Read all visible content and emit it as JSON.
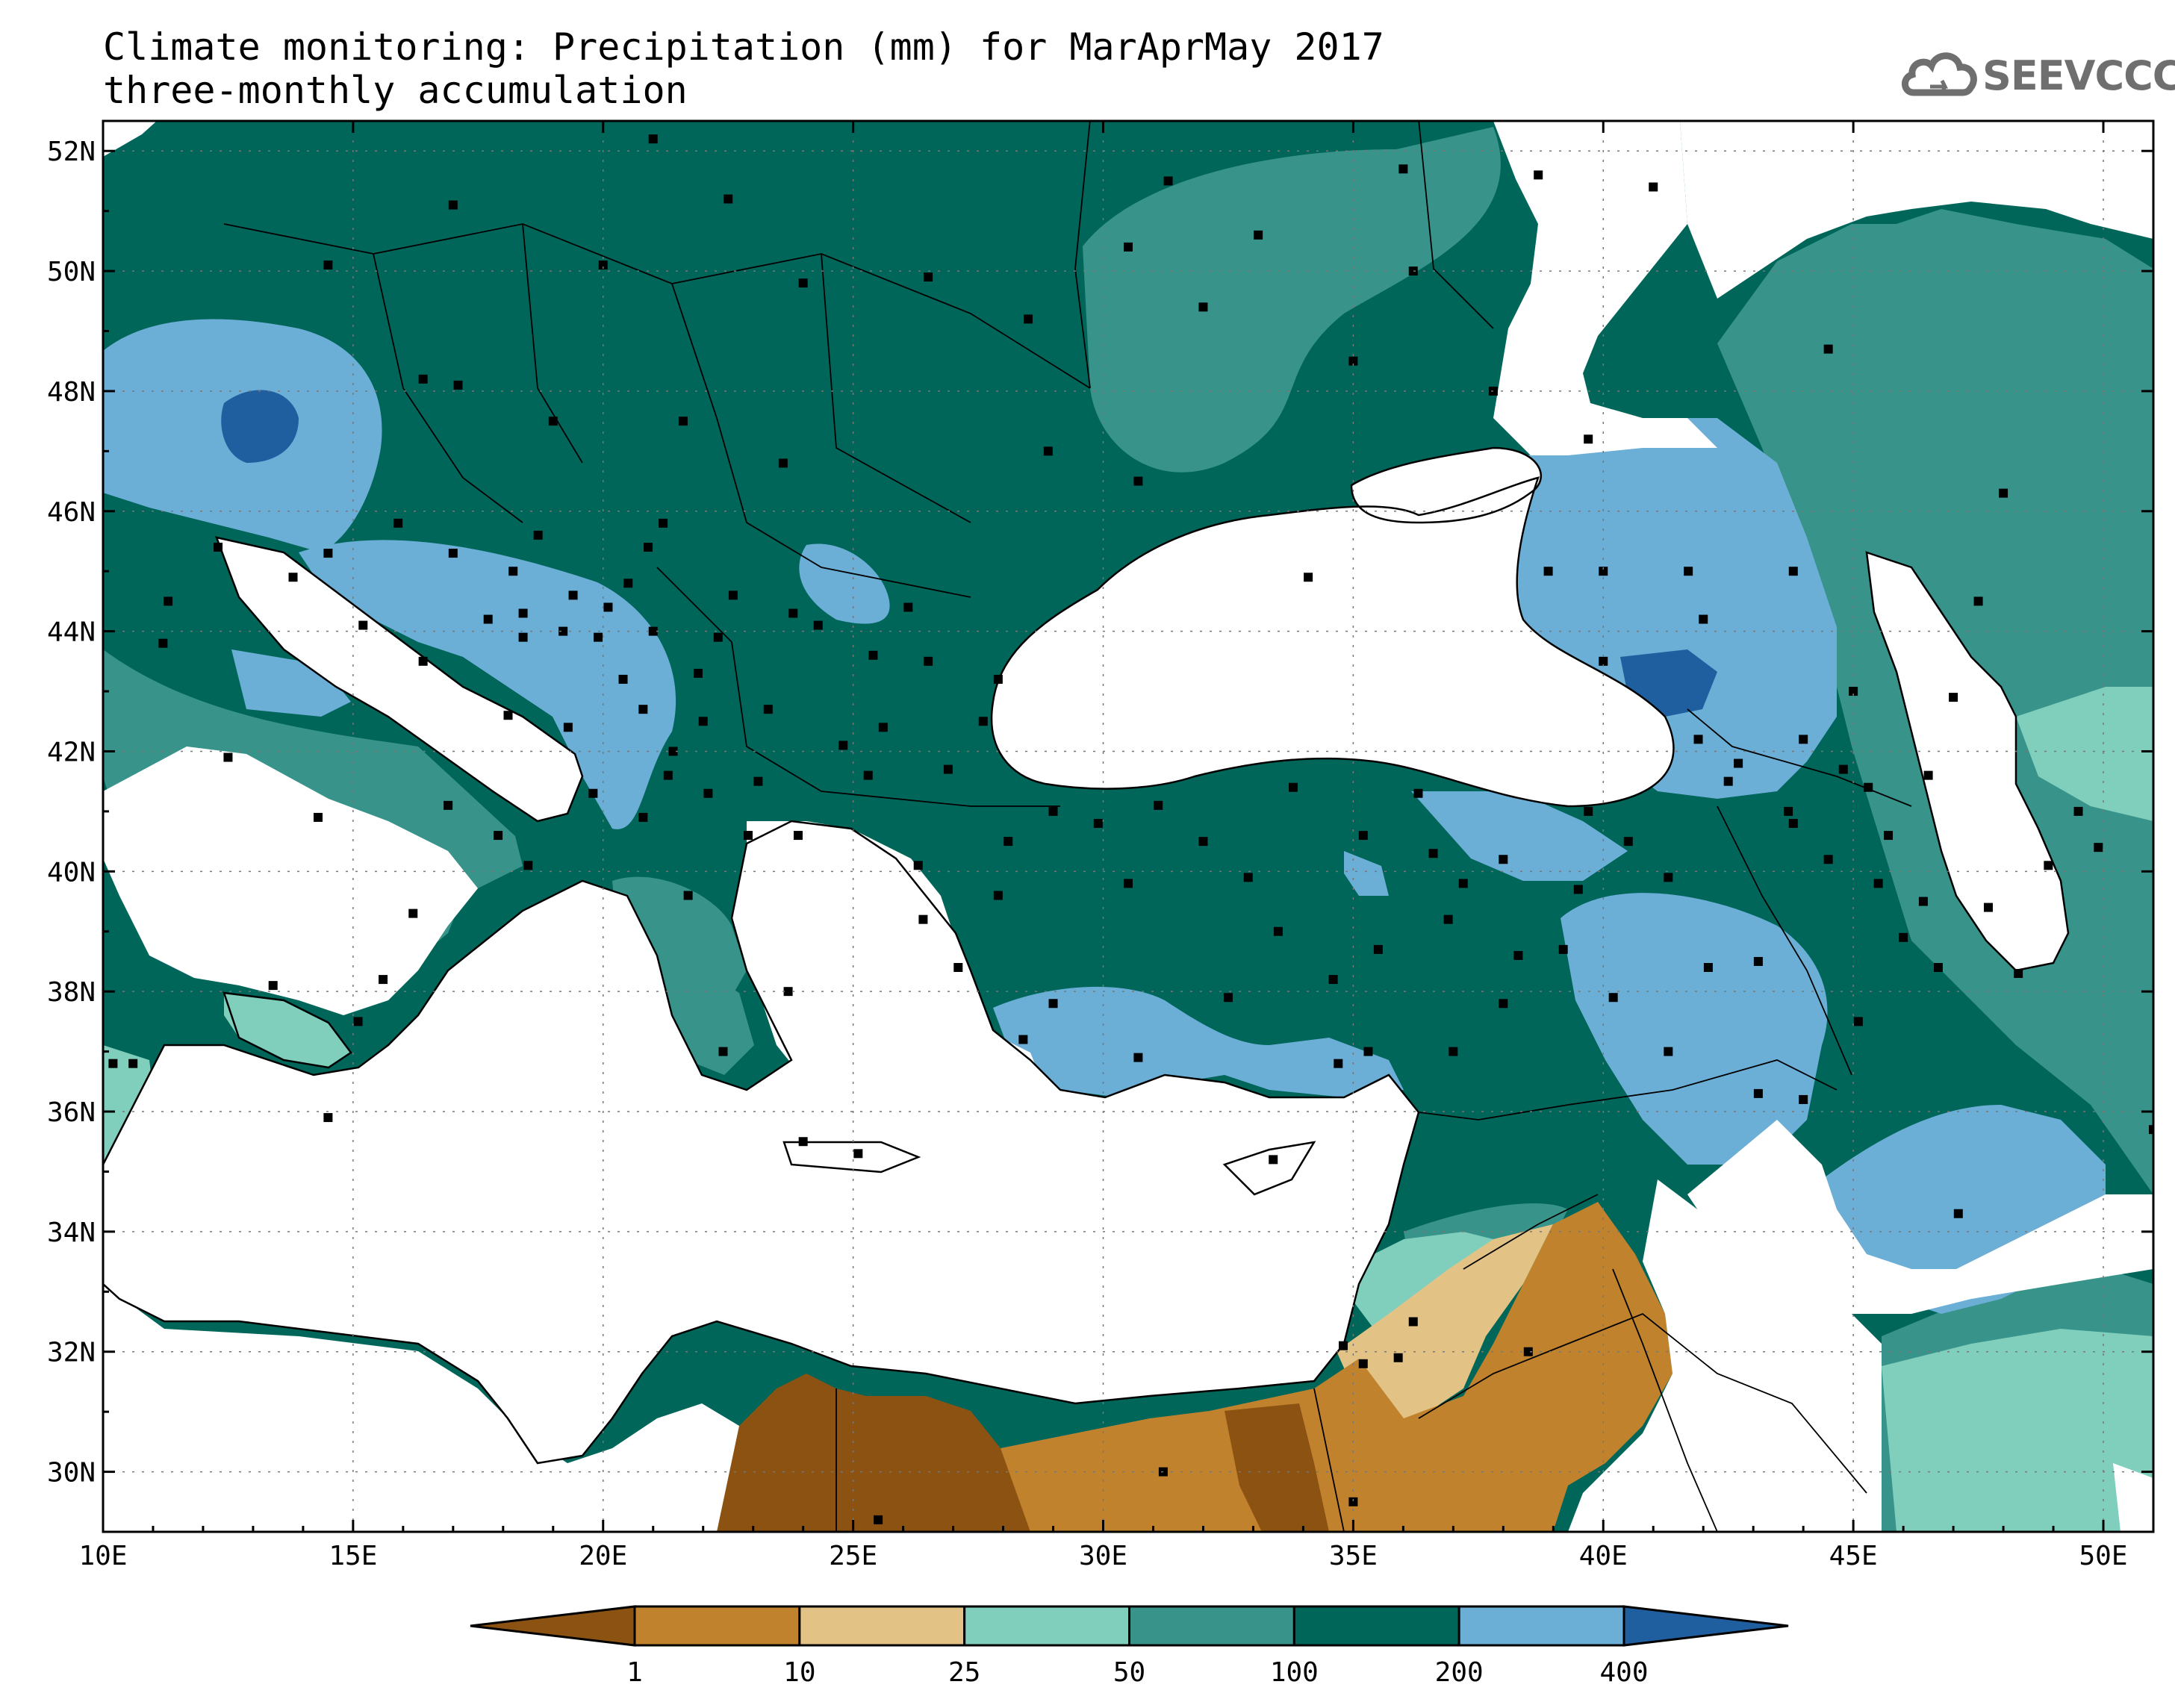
{
  "title": {
    "line1": "Climate monitoring: Precipitation (mm) for MarAprMay 2017",
    "line2": "three-monthly accumulation"
  },
  "logo": {
    "text": "SEEVCCC",
    "icon": "cloud-icon"
  },
  "map": {
    "longitude_range": [
      10,
      51
    ],
    "latitude_range": [
      29,
      52.5
    ],
    "lon_ticks": [
      "10E",
      "15E",
      "20E",
      "25E",
      "30E",
      "35E",
      "40E",
      "45E",
      "50E"
    ],
    "lat_ticks": [
      "30N",
      "32N",
      "34N",
      "36N",
      "38N",
      "40N",
      "42N",
      "44N",
      "46N",
      "48N",
      "50N",
      "52N"
    ],
    "grid": "dotted"
  },
  "legend": {
    "labels": [
      "1",
      "10",
      "25",
      "50",
      "100",
      "200",
      "400"
    ],
    "colors": [
      "#8b5212",
      "#c1822e",
      "#e2c385",
      "#80cfbd",
      "#38948a",
      "#00665a",
      "#6baed6",
      "#1f5f9f"
    ]
  }
}
